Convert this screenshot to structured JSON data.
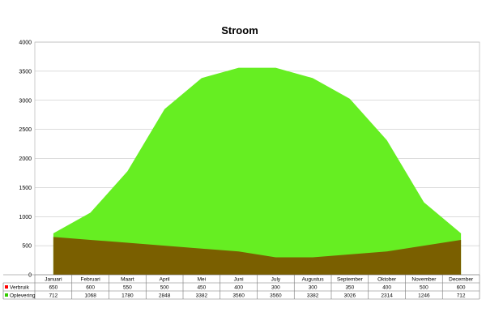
{
  "chart_data": {
    "type": "area",
    "title": "Stroom",
    "categories": [
      "Januari",
      "Februari",
      "Maart",
      "April",
      "Mei",
      "Juni",
      "July",
      "Augustus",
      "September",
      "Oktober",
      "November",
      "December"
    ],
    "series": [
      {
        "name": "Verbruik",
        "color": "#ff0000",
        "fill": "#7a5f00",
        "values": [
          650,
          600,
          550,
          500,
          450,
          400,
          300,
          300,
          350,
          400,
          500,
          600
        ]
      },
      {
        "name": "Oplevering",
        "color": "#33cc00",
        "fill": "#66ee22",
        "values": [
          712,
          1068,
          1780,
          2848,
          3382,
          3560,
          3560,
          3382,
          3026,
          2314,
          1246,
          712
        ]
      }
    ],
    "ylim": [
      0,
      4000
    ],
    "yticks": [
      0,
      500,
      1000,
      1500,
      2000,
      2500,
      3000,
      3500,
      4000
    ],
    "grid": true,
    "legend": "data-table"
  }
}
